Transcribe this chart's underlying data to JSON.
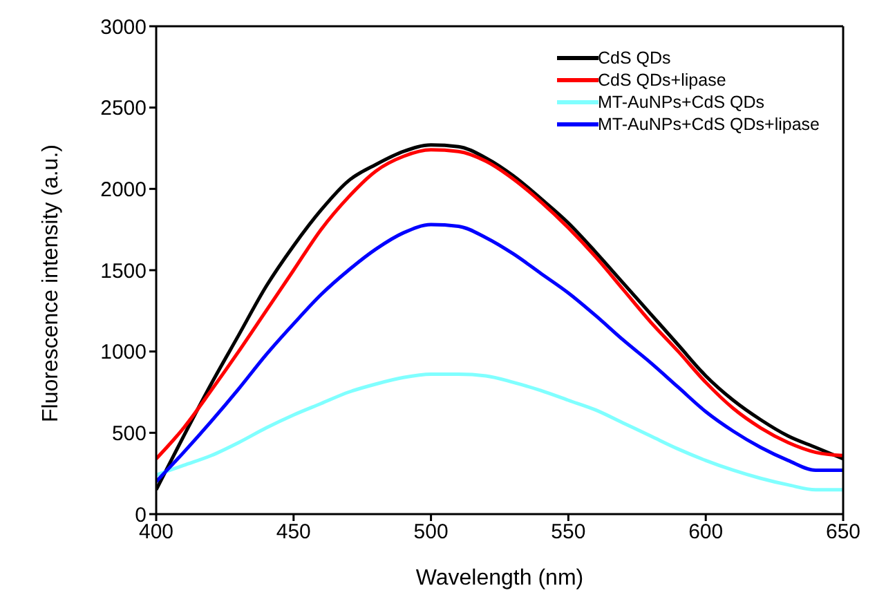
{
  "chart_data": {
    "type": "line",
    "xlabel": "Wavelength (nm)",
    "ylabel": "Fluorescence intensity (a.u.)",
    "x": [
      400,
      410,
      420,
      430,
      440,
      450,
      460,
      470,
      480,
      490,
      500,
      510,
      520,
      530,
      540,
      550,
      560,
      570,
      580,
      590,
      600,
      610,
      620,
      630,
      640,
      650
    ],
    "xlim": [
      400,
      650
    ],
    "xticks": [
      400,
      450,
      500,
      550,
      600,
      650
    ],
    "ylim": [
      0,
      3000
    ],
    "yticks": [
      0,
      500,
      1000,
      1500,
      2000,
      2500,
      3000
    ],
    "grid": false,
    "legend": "top right",
    "marker": "none",
    "line_style": "solid",
    "series": [
      {
        "name": "CdS QDs",
        "color": "#000000",
        "values": [
          150,
          480,
          800,
          1100,
          1400,
          1650,
          1870,
          2050,
          2150,
          2230,
          2270,
          2260,
          2190,
          2080,
          1940,
          1790,
          1610,
          1420,
          1230,
          1040,
          850,
          700,
          580,
          480,
          410,
          340
        ]
      },
      {
        "name": "CdS QDs+lipase",
        "color": "#ff0000",
        "values": [
          340,
          530,
          760,
          1000,
          1250,
          1500,
          1750,
          1950,
          2110,
          2200,
          2240,
          2230,
          2170,
          2060,
          1920,
          1760,
          1580,
          1380,
          1180,
          1000,
          810,
          650,
          530,
          440,
          380,
          360
        ]
      },
      {
        "name": "MT-AuNPs+CdS QDs",
        "color": "#80ffff",
        "values": [
          240,
          300,
          360,
          440,
          530,
          610,
          680,
          750,
          800,
          840,
          860,
          860,
          850,
          810,
          760,
          700,
          640,
          560,
          480,
          400,
          330,
          270,
          220,
          180,
          150,
          150
        ]
      },
      {
        "name": "MT-AuNPs+CdS QDs+lipase",
        "color": "#0000ff",
        "values": [
          200,
          380,
          570,
          770,
          980,
          1170,
          1350,
          1500,
          1630,
          1730,
          1780,
          1770,
          1700,
          1600,
          1480,
          1360,
          1220,
          1070,
          930,
          780,
          630,
          510,
          410,
          330,
          270,
          270
        ]
      }
    ]
  }
}
